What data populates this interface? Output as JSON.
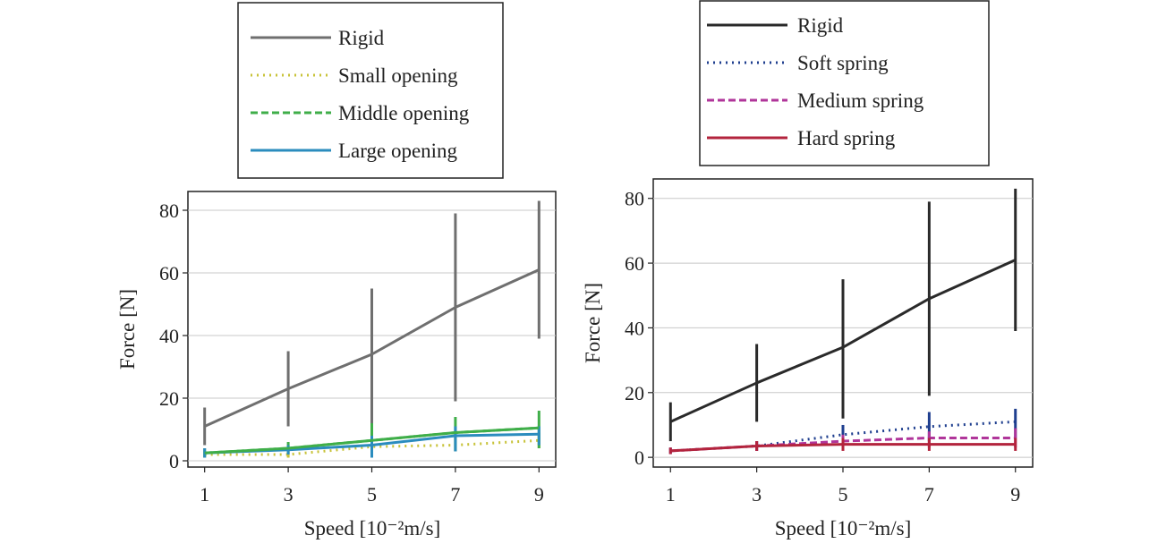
{
  "chart_data": [
    {
      "type": "line",
      "xlabel": "Speed [10⁻²m/s]",
      "ylabel": "Force [N]",
      "xlim": [
        0.6,
        9.4
      ],
      "ylim": [
        -2,
        86
      ],
      "xticks": [
        1,
        3,
        5,
        7,
        9
      ],
      "yticks": [
        0,
        20,
        40,
        60,
        80
      ],
      "grid": "horizontal",
      "legend_position": "above",
      "series": [
        {
          "name": "Rigid",
          "color": "#6f6f6f",
          "dash": "solid",
          "x": [
            1,
            3,
            5,
            7,
            9
          ],
          "values": [
            11,
            23,
            34,
            49,
            61
          ],
          "err_low": [
            5,
            11,
            12,
            19,
            39
          ],
          "err_high": [
            17,
            35,
            55,
            79,
            83
          ]
        },
        {
          "name": "Small opening",
          "color": "#c8c33a",
          "dash": "dotted",
          "x": [
            1,
            3,
            5,
            7,
            9
          ],
          "values": [
            2,
            2,
            4.5,
            5,
            6.5
          ],
          "err_low": [
            1,
            1,
            2,
            3,
            4
          ],
          "err_high": [
            3,
            3,
            7,
            8,
            9
          ]
        },
        {
          "name": "Middle opening",
          "color": "#3fae49",
          "dash": "dashed",
          "x": [
            1,
            3,
            5,
            7,
            9
          ],
          "values": [
            2.5,
            4,
            6.5,
            9,
            10.5
          ],
          "err_low": [
            1,
            2,
            2,
            3,
            4
          ],
          "err_high": [
            4,
            6,
            12,
            14,
            16
          ]
        },
        {
          "name": "Large opening",
          "color": "#2b8cbe",
          "dash": "solid",
          "x": [
            1,
            3,
            5,
            7,
            9
          ],
          "values": [
            2.5,
            3.5,
            5,
            8,
            8.5
          ],
          "err_low": [
            1,
            2,
            1,
            3,
            5
          ],
          "err_high": [
            4,
            5,
            8,
            11,
            11
          ]
        },
        {
          "name": "Middle opening",
          "color": "#3fae49",
          "dash": "solid",
          "x": [
            1,
            3,
            5,
            7,
            9
          ],
          "values": [
            2.5,
            4,
            6.5,
            9,
            10.5
          ],
          "err_low": [],
          "err_high": [],
          "legend": false
        }
      ]
    },
    {
      "type": "line",
      "xlabel": "Speed [10⁻²m/s]",
      "ylabel": "Force [N]",
      "xlim": [
        0.6,
        9.4
      ],
      "ylim": [
        -3,
        86
      ],
      "xticks": [
        1,
        3,
        5,
        7,
        9
      ],
      "yticks": [
        0,
        20,
        40,
        60,
        80
      ],
      "grid": "horizontal",
      "legend_position": "above",
      "series": [
        {
          "name": "Rigid",
          "color": "#2a2a2a",
          "dash": "solid",
          "x": [
            1,
            3,
            5,
            7,
            9
          ],
          "values": [
            11,
            23,
            34,
            49,
            61
          ],
          "err_low": [
            5,
            11,
            12,
            19,
            39
          ],
          "err_high": [
            17,
            35,
            55,
            79,
            83
          ]
        },
        {
          "name": "Soft spring",
          "color": "#1f3f8f",
          "dash": "dotted",
          "x": [
            1,
            3,
            5,
            7,
            9
          ],
          "values": [
            2,
            3.5,
            7,
            9.5,
            11
          ],
          "err_low": [
            1,
            2,
            3,
            5,
            6
          ],
          "err_high": [
            3,
            5,
            10,
            14,
            15
          ]
        },
        {
          "name": "Medium spring",
          "color": "#b0359a",
          "dash": "dashed",
          "x": [
            1,
            3,
            5,
            7,
            9
          ],
          "values": [
            2,
            3.5,
            5,
            6,
            6
          ],
          "err_low": [
            1,
            2,
            3,
            3,
            3
          ],
          "err_high": [
            3,
            5,
            7,
            8,
            9
          ]
        },
        {
          "name": "Hard spring",
          "color": "#b3243d",
          "dash": "solid",
          "x": [
            1,
            3,
            5,
            7,
            9
          ],
          "values": [
            2,
            3.5,
            4,
            4,
            4
          ],
          "err_low": [
            1,
            2,
            2,
            2,
            2
          ],
          "err_high": [
            3,
            5,
            6,
            6,
            6
          ]
        }
      ]
    }
  ]
}
